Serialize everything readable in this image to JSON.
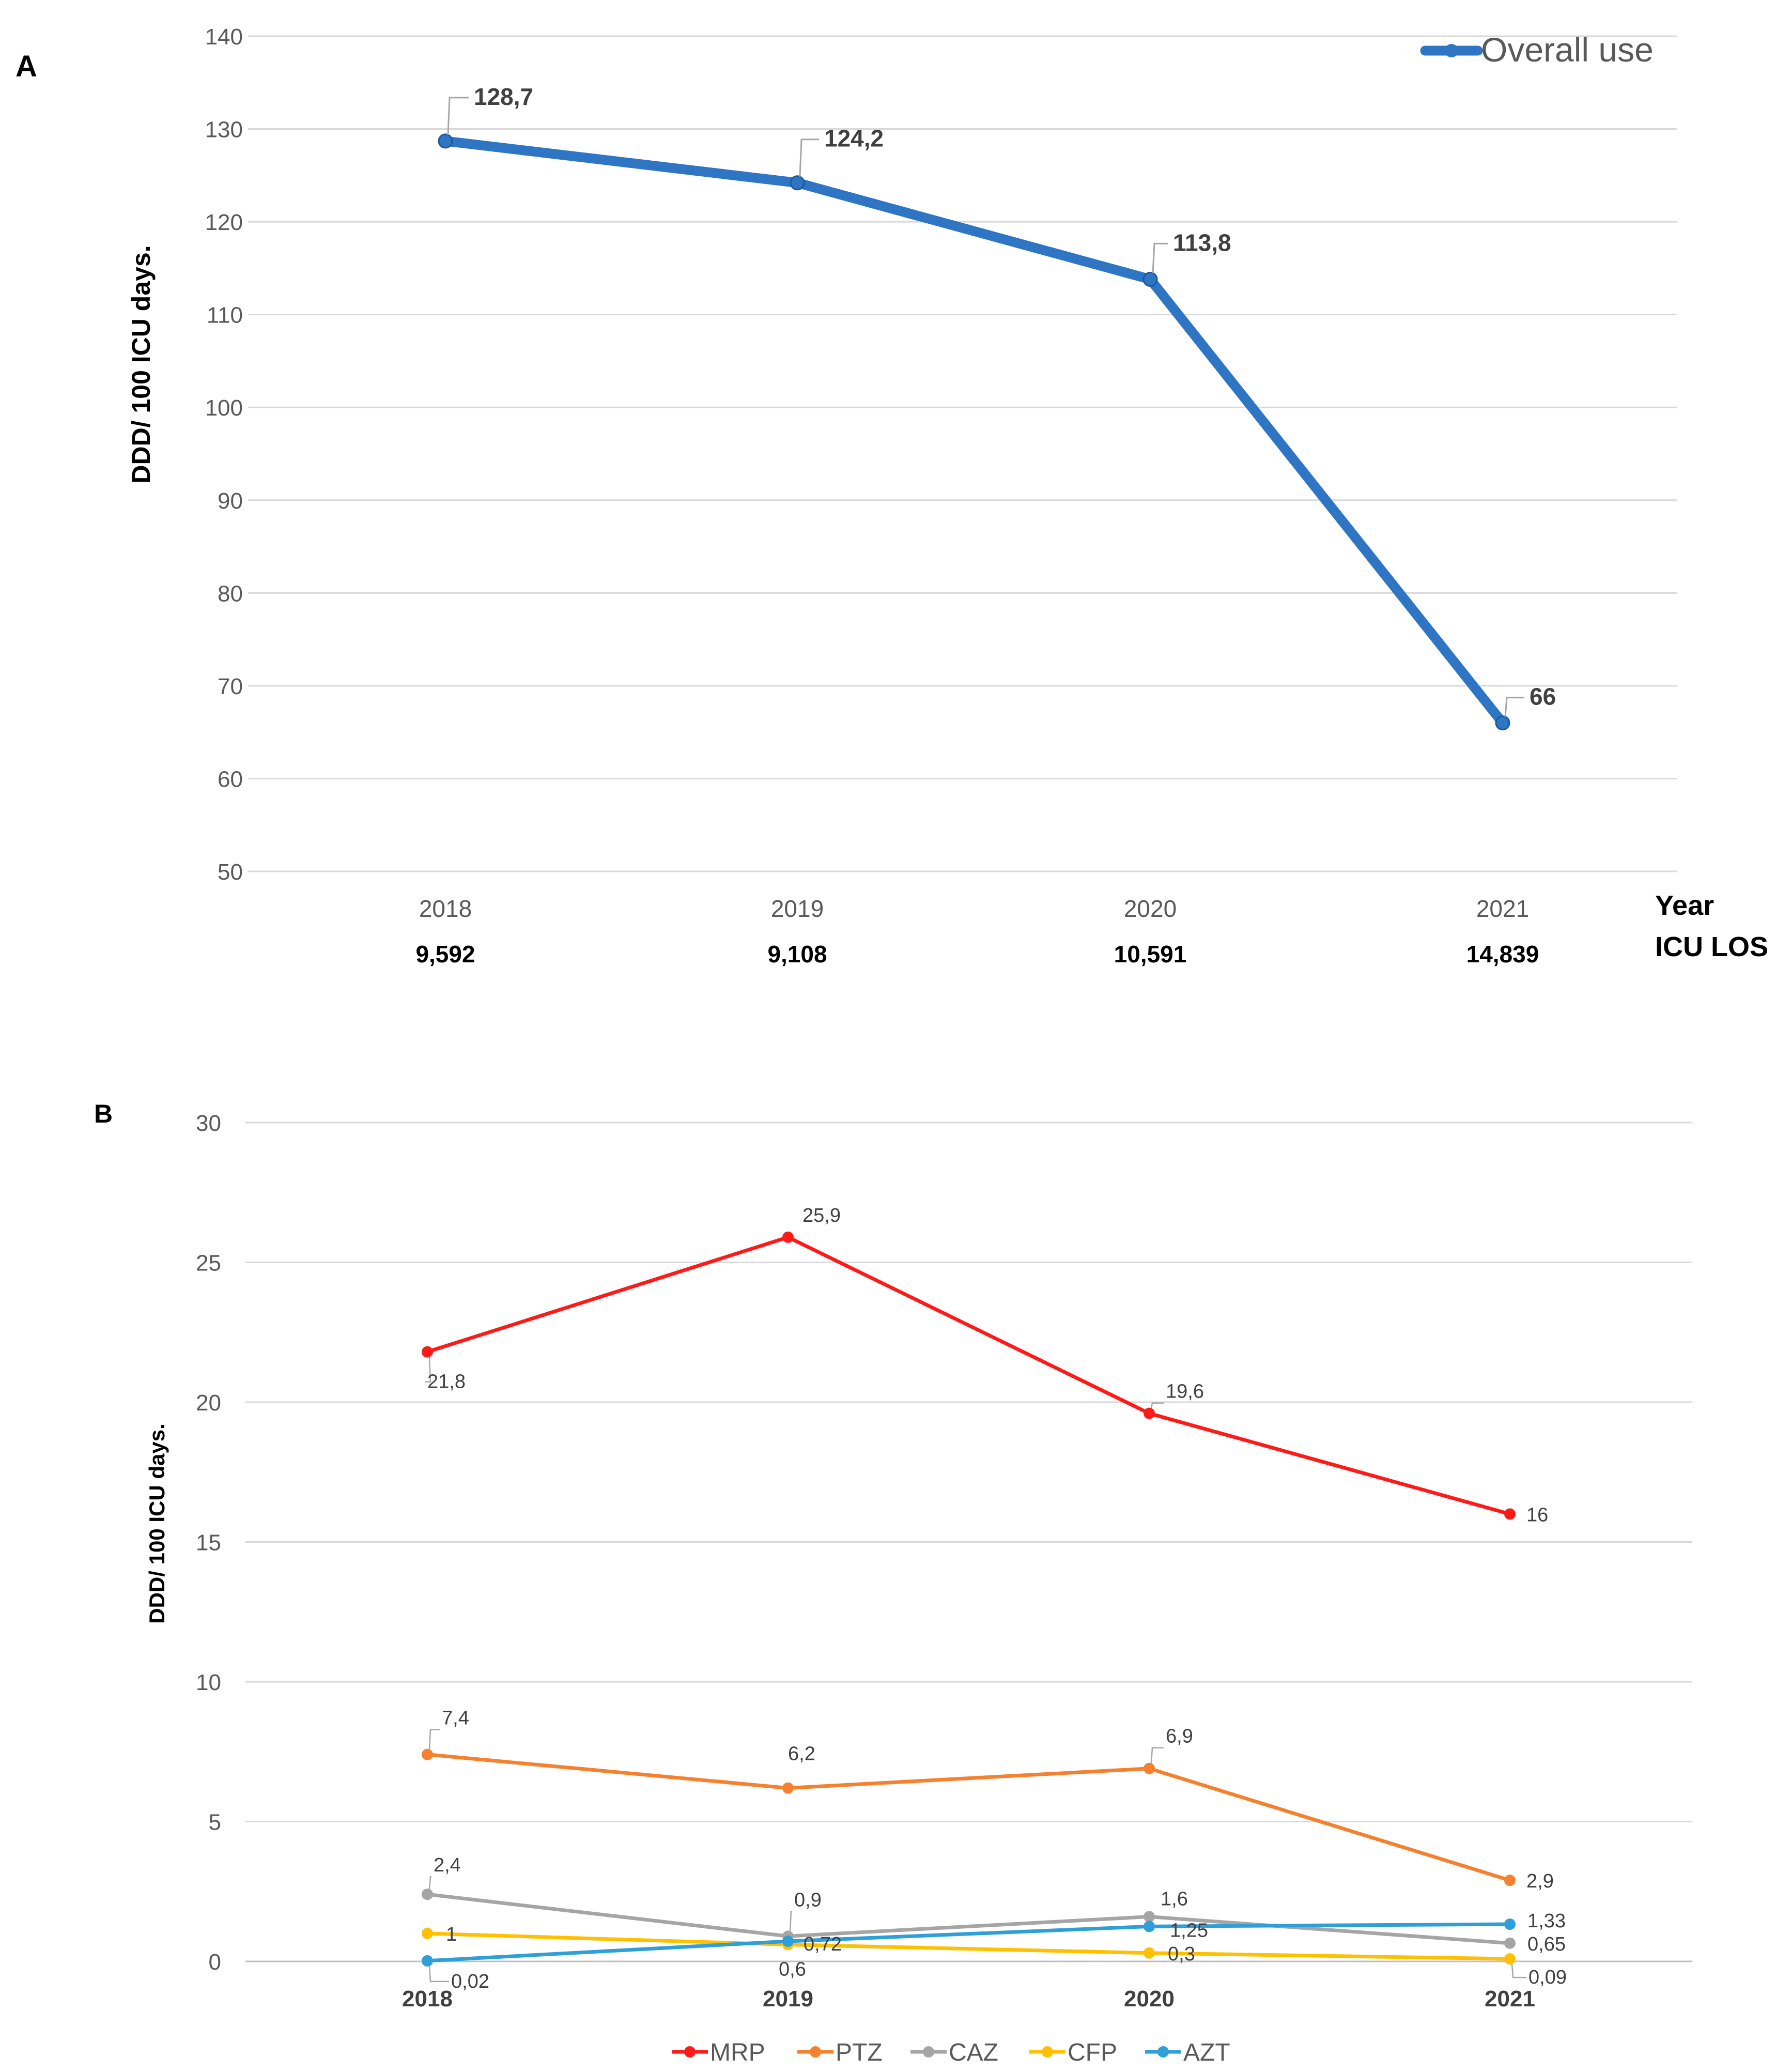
{
  "panel_a_label": "A",
  "panel_b_label": "B",
  "chart_data": [
    {
      "type": "line",
      "panel": "A",
      "title": "",
      "ylabel": "DDD/ 100 ICU days.",
      "ylim": [
        50,
        140
      ],
      "yticks": [
        50,
        60,
        70,
        80,
        90,
        100,
        110,
        120,
        130,
        140
      ],
      "categories": [
        "2018",
        "2019",
        "2020",
        "2021"
      ],
      "xlabel": "Year",
      "secondary_row_label": "ICU LOS",
      "secondary_row": [
        "9,592",
        "9,108",
        "10,591",
        "14,839"
      ],
      "legend_position": "top-right",
      "grid": true,
      "series": [
        {
          "name": "Overall use",
          "color": "#2e75c4",
          "values": [
            128.7,
            124.2,
            113.8,
            66
          ],
          "labels": [
            "128,7",
            "124,2",
            "113,8",
            "66"
          ]
        }
      ]
    },
    {
      "type": "line",
      "panel": "B",
      "title": "",
      "ylabel": "DDD/ 100 ICU days.",
      "ylim": [
        0,
        30
      ],
      "yticks": [
        0,
        5,
        10,
        15,
        20,
        25,
        30
      ],
      "categories": [
        "2018",
        "2019",
        "2020",
        "2021"
      ],
      "legend_position": "bottom",
      "grid": true,
      "series": [
        {
          "name": "MRP",
          "color": "#ff1a1a",
          "values": [
            21.8,
            25.9,
            19.6,
            16
          ],
          "labels": [
            "21,8",
            "25,9",
            "19,6",
            "16"
          ]
        },
        {
          "name": "PTZ",
          "color": "#f5812e",
          "values": [
            7.4,
            6.2,
            6.9,
            2.9
          ],
          "labels": [
            "7,4",
            "6,2",
            "6,9",
            "2,9"
          ]
        },
        {
          "name": "CAZ",
          "color": "#a5a5a5",
          "values": [
            2.4,
            0.9,
            1.6,
            0.65
          ],
          "labels": [
            "2,4",
            "0,9",
            "1,6",
            "0,65"
          ]
        },
        {
          "name": "CFP",
          "color": "#ffc000",
          "values": [
            1,
            0.6,
            0.3,
            0.09
          ],
          "labels": [
            "1",
            "0,6",
            "0,3",
            "0,09"
          ]
        },
        {
          "name": "AZT",
          "color": "#2e9fd8",
          "values": [
            0.02,
            0.72,
            1.25,
            1.33
          ],
          "labels": [
            "0,02",
            "0,72",
            "1,25",
            "1,33"
          ]
        }
      ]
    }
  ]
}
